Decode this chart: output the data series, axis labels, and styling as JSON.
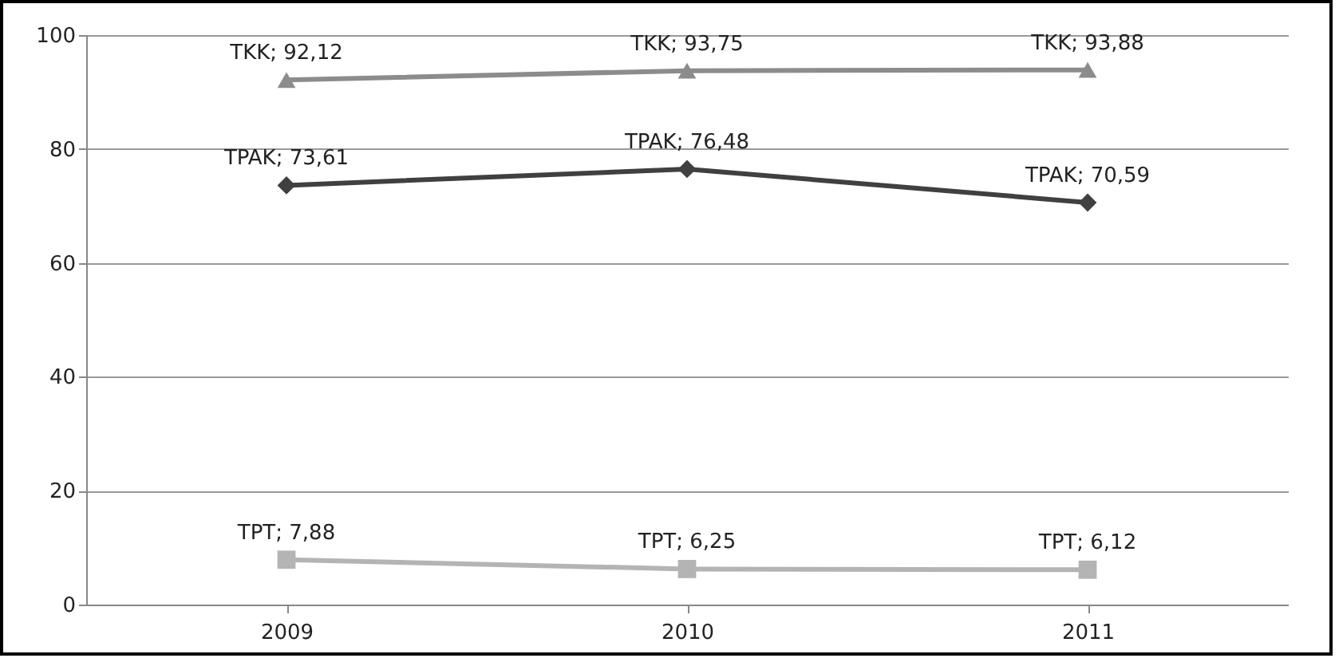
{
  "chart_data": {
    "type": "line",
    "categories": [
      "2009",
      "2010",
      "2011"
    ],
    "series": [
      {
        "color": "#8c8c8c",
        "marker": "triangle",
        "values": [
          92.12,
          93.75,
          93.88
        ],
        "value_labels": [
          "TKK; 92,12",
          "TKK; 93,75",
          "TKK; 93,88"
        ]
      },
      {
        "color": "#404040",
        "marker": "diamond",
        "values": [
          73.61,
          76.48,
          70.59
        ],
        "value_labels": [
          "TPAK; 73,61",
          "TPAK; 76,48",
          "TPAK; 70,59"
        ]
      },
      {
        "color": "#b4b4b4",
        "marker": "square",
        "values": [
          7.88,
          6.25,
          6.12
        ],
        "value_labels": [
          "TPT; 7,88",
          "TPT; 6,25",
          "TPT; 6,12"
        ]
      }
    ],
    "ylim": [
      0,
      100
    ],
    "yticks": [
      0,
      20,
      40,
      60,
      80,
      100
    ],
    "grid": "y",
    "line_style": "solid"
  }
}
